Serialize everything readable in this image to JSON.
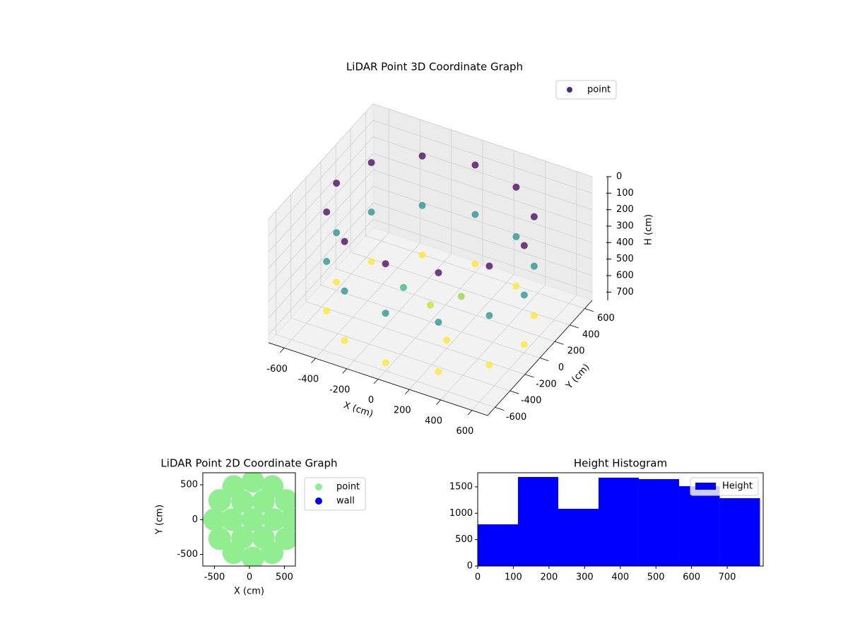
{
  "chart_data": [
    {
      "type": "scatter3d",
      "title": "LiDAR Point 3D Coordinate Graph",
      "xlabel": "X (cm)",
      "ylabel": "Y (cm)",
      "zlabel": "H (cm)",
      "xlim": [
        -700,
        700
      ],
      "ylim": [
        -700,
        700
      ],
      "zlim": [
        750,
        0
      ],
      "xticks": [
        -600,
        -400,
        -200,
        0,
        200,
        400,
        600
      ],
      "yticks": [
        -600,
        -400,
        -200,
        0,
        200,
        400,
        600
      ],
      "zticks": [
        0,
        100,
        200,
        300,
        400,
        500,
        600,
        700
      ],
      "colormap": "viridis",
      "grid": true,
      "legend": "upper right",
      "series": [
        {
          "name": "point",
          "color": "#472c7a",
          "x": [
            600,
            520,
            300,
            0,
            -300,
            -520,
            -600,
            -520,
            -300,
            0,
            300,
            520,
            600,
            520,
            300,
            0,
            -300,
            -520,
            -600,
            -520,
            -300,
            0,
            300,
            520,
            600,
            520,
            300,
            0,
            -300,
            -520,
            -600,
            -520,
            -300,
            0,
            300,
            520,
            0,
            150,
            -100,
            200
          ],
          "y": [
            0,
            300,
            520,
            600,
            520,
            300,
            0,
            -300,
            -520,
            -600,
            -520,
            -300,
            0,
            300,
            520,
            600,
            520,
            300,
            0,
            -300,
            -520,
            -600,
            -520,
            -300,
            0,
            300,
            520,
            600,
            520,
            300,
            0,
            -300,
            -520,
            -600,
            -520,
            -300,
            0,
            100,
            -150,
            -200
          ],
          "z": [
            100,
            100,
            100,
            100,
            100,
            100,
            100,
            100,
            100,
            100,
            100,
            100,
            400,
            400,
            400,
            400,
            400,
            400,
            400,
            400,
            400,
            400,
            400,
            400,
            700,
            700,
            700,
            700,
            700,
            700,
            700,
            700,
            700,
            700,
            700,
            700,
            650,
            600,
            500,
            700
          ]
        }
      ]
    },
    {
      "type": "scatter",
      "title": "LiDAR Point 2D Coordinate Graph",
      "xlabel": "X (cm)",
      "ylabel": "Y (cm)",
      "xlim": [
        -667,
        657
      ],
      "ylim": [
        -667,
        673
      ],
      "xticks": [
        -500,
        0,
        500
      ],
      "yticks": [
        -500,
        0,
        500
      ],
      "legend": "outside right",
      "series": [
        {
          "name": "point",
          "color": "#90ee90",
          "x": [
            50,
            600,
            526,
            325,
            50,
            -225,
            -426,
            -500,
            -426,
            -225,
            50,
            325,
            526,
            350,
            200,
            -100,
            -250,
            -100,
            200
          ],
          "y": [
            0,
            0,
            275,
            476,
            550,
            476,
            275,
            0,
            -275,
            -476,
            -550,
            -476,
            -275,
            0,
            260,
            260,
            0,
            -260,
            -260
          ]
        },
        {
          "name": "wall",
          "color": "#0000ff",
          "x": [],
          "y": []
        }
      ]
    },
    {
      "type": "histogram",
      "title": "Height Histogram",
      "name": "Height",
      "color": "#0000ff",
      "bins": [
        0,
        113,
        226,
        339,
        452,
        565,
        679,
        792
      ],
      "values": [
        790,
        1687,
        1084,
        1674,
        1647,
        1513,
        1285
      ],
      "xlim": [
        0,
        801
      ],
      "ylim": [
        0,
        1767
      ],
      "xticks": [
        0,
        100,
        200,
        300,
        400,
        500,
        600,
        700
      ],
      "yticks": [
        0,
        500,
        1000,
        1500
      ],
      "legend": "upper right"
    }
  ]
}
